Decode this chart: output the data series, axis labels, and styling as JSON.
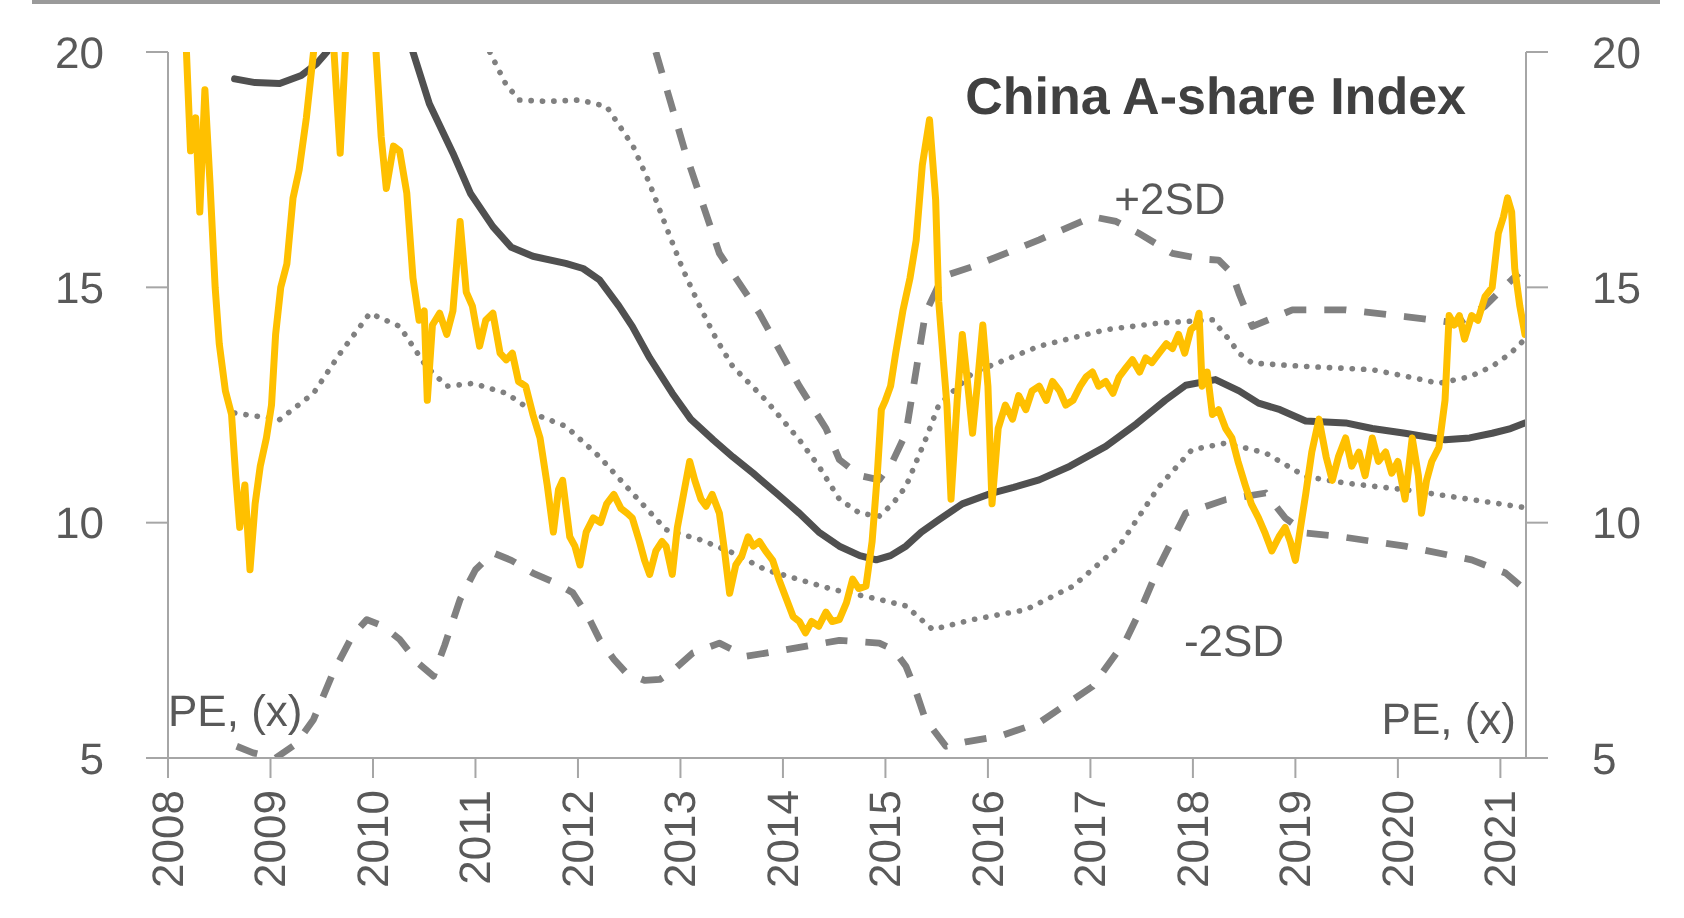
{
  "chart_data": {
    "type": "line",
    "title": "China A-share Index",
    "ylabel": "PE, (x)",
    "y2label": "PE, (x)",
    "annotations": [
      "+2SD",
      "-2SD"
    ],
    "xlim": [
      2008,
      2021.25
    ],
    "xticks": [
      2008,
      2009,
      2010,
      2011,
      2012,
      2013,
      2014,
      2015,
      2016,
      2017,
      2018,
      2019,
      2020,
      2021
    ],
    "ylim": [
      5,
      20
    ],
    "yticks": [
      5,
      10,
      15,
      20
    ],
    "y2lim": [
      5,
      20
    ],
    "y2ticks": [
      5,
      10,
      15,
      20
    ],
    "series": [
      {
        "color": "#ffc000",
        "line_style": "solid",
        "x": [
          2008.18,
          2008.22,
          2008.27,
          2008.31,
          2008.36,
          2008.41,
          2008.46,
          2008.5,
          2008.56,
          2008.62,
          2008.66,
          2008.7,
          2008.75,
          2008.8,
          2008.85,
          2008.9,
          2008.96,
          2009.01,
          2009.05,
          2009.1,
          2009.16,
          2009.22,
          2009.28,
          2009.35,
          2009.42,
          2009.52,
          2009.62,
          2009.68,
          2009.73,
          2009.88,
          2010.03,
          2010.08,
          2010.13,
          2010.2,
          2010.26,
          2010.33,
          2010.39,
          2010.45,
          2010.5,
          2010.53,
          2010.58,
          2010.65,
          2010.72,
          2010.78,
          2010.85,
          2010.91,
          2010.97,
          2011.04,
          2011.1,
          2011.17,
          2011.24,
          2011.3,
          2011.36,
          2011.42,
          2011.49,
          2011.56,
          2011.63,
          2011.7,
          2011.76,
          2011.81,
          2011.85,
          2011.92,
          2011.97,
          2012.02,
          2012.08,
          2012.15,
          2012.22,
          2012.28,
          2012.35,
          2012.42,
          2012.48,
          2012.53,
          2012.6,
          2012.65,
          2012.7,
          2012.76,
          2012.82,
          2012.86,
          2012.92,
          2012.97,
          2013.03,
          2013.09,
          2013.14,
          2013.2,
          2013.25,
          2013.31,
          2013.38,
          2013.43,
          2013.48,
          2013.54,
          2013.6,
          2013.66,
          2013.71,
          2013.77,
          2013.83,
          2013.9,
          2013.96,
          2014.03,
          2014.1,
          2014.16,
          2014.22,
          2014.28,
          2014.35,
          2014.42,
          2014.48,
          2014.55,
          2014.62,
          2014.68,
          2014.74,
          2014.81,
          2014.87,
          2014.92,
          2014.96,
          2015.0,
          2015.05,
          2015.1,
          2015.17,
          2015.24,
          2015.3,
          2015.36,
          2015.43,
          2015.49,
          2015.52,
          2015.57,
          2015.6,
          2015.64,
          2015.7,
          2015.75,
          2015.8,
          2015.85,
          2015.9,
          2015.95,
          2016.0,
          2016.04,
          2016.1,
          2016.17,
          2016.24,
          2016.3,
          2016.37,
          2016.43,
          2016.5,
          2016.57,
          2016.63,
          2016.7,
          2016.76,
          2016.83,
          2016.9,
          2016.96,
          2017.02,
          2017.08,
          2017.15,
          2017.22,
          2017.28,
          2017.35,
          2017.41,
          2017.48,
          2017.54,
          2017.6,
          2017.67,
          2017.74,
          2017.8,
          2017.86,
          2017.92,
          2017.98,
          2018.03,
          2018.06,
          2018.09,
          2018.14,
          2018.19,
          2018.25,
          2018.32,
          2018.38,
          2018.44,
          2018.51,
          2018.57,
          2018.64,
          2018.7,
          2018.77,
          2018.84,
          2018.9,
          2018.95,
          2019.0,
          2019.05,
          2019.1,
          2019.16,
          2019.23,
          2019.3,
          2019.36,
          2019.42,
          2019.49,
          2019.55,
          2019.62,
          2019.68,
          2019.75,
          2019.81,
          2019.88,
          2019.94,
          2020.0,
          2020.07,
          2020.14,
          2020.2,
          2020.23,
          2020.28,
          2020.33,
          2020.4,
          2020.46,
          2020.5,
          2020.55,
          2020.6,
          2020.65,
          2020.72,
          2020.78,
          2020.85,
          2020.92,
          2020.98,
          2021.03,
          2021.07,
          2021.11,
          2021.14,
          2021.19,
          2021.24
        ],
        "values": [
          20,
          17.9,
          18.6,
          16.6,
          19.2,
          17.2,
          15.0,
          13.8,
          12.8,
          12.3,
          11.0,
          9.9,
          10.8,
          9.0,
          10.4,
          11.2,
          11.8,
          12.5,
          14.0,
          15.0,
          15.5,
          16.9,
          17.5,
          18.6,
          20,
          null,
          20,
          17.85,
          20,
          null,
          20,
          18.2,
          17.1,
          18.0,
          17.9,
          17.0,
          15.2,
          14.3,
          14.5,
          12.6,
          14.2,
          14.45,
          14.0,
          14.5,
          16.4,
          14.9,
          14.6,
          13.75,
          14.3,
          14.45,
          13.6,
          13.46,
          13.6,
          13.0,
          12.9,
          12.3,
          11.8,
          10.8,
          9.8,
          10.7,
          10.9,
          9.7,
          9.5,
          9.1,
          9.8,
          10.1,
          10.0,
          10.4,
          10.6,
          10.3,
          10.2,
          10.1,
          9.6,
          9.2,
          8.9,
          9.4,
          9.6,
          9.5,
          8.9,
          9.9,
          10.6,
          11.3,
          10.9,
          10.5,
          10.35,
          10.6,
          10.2,
          9.4,
          8.5,
          9.1,
          9.3,
          9.7,
          9.5,
          9.6,
          9.4,
          9.2,
          8.8,
          8.4,
          8.0,
          7.9,
          7.66,
          7.9,
          7.8,
          8.1,
          7.9,
          7.94,
          8.3,
          8.8,
          8.6,
          8.65,
          9.6,
          11.0,
          12.4,
          12.6,
          12.9,
          13.6,
          14.5,
          15.2,
          16.0,
          17.6,
          18.56,
          16.86,
          14.7,
          13.3,
          12.5,
          10.5,
          12.6,
          14.0,
          13.0,
          11.9,
          13.0,
          14.2,
          12.9,
          10.4,
          12.0,
          12.5,
          12.2,
          12.7,
          12.4,
          12.8,
          12.9,
          12.6,
          13.0,
          12.8,
          12.5,
          12.6,
          12.9,
          13.1,
          13.2,
          12.9,
          13.0,
          12.75,
          13.1,
          13.3,
          13.46,
          13.2,
          13.5,
          13.4,
          13.6,
          13.8,
          13.7,
          14.0,
          13.6,
          14.1,
          14.2,
          14.45,
          12.9,
          13.2,
          12.3,
          12.4,
          12.0,
          11.8,
          11.3,
          10.8,
          10.4,
          10.1,
          9.8,
          9.4,
          9.7,
          9.9,
          9.6,
          9.2,
          9.9,
          10.6,
          11.5,
          12.2,
          11.4,
          10.9,
          11.4,
          11.8,
          11.2,
          11.5,
          11.0,
          11.8,
          11.3,
          11.5,
          11.05,
          11.3,
          10.5,
          11.8,
          11.0,
          10.2,
          10.9,
          11.3,
          11.6,
          12.6,
          14.4,
          14.2,
          14.4,
          13.9,
          14.4,
          14.3,
          14.8,
          15.0,
          16.15,
          16.5,
          16.9,
          16.6,
          15.4,
          14.6,
          14.0
        ]
      },
      {
        "color": "#505050",
        "line_style": "solid",
        "x": [
          2008.65,
          2008.85,
          2009.09,
          2009.3,
          2009.45,
          2009.55,
          2009.9,
          2010.39,
          2010.55,
          2010.78,
          2010.95,
          2011.17,
          2011.35,
          2011.56,
          2011.88,
          2012.05,
          2012.21,
          2012.4,
          2012.53,
          2012.7,
          2012.92,
          2013.1,
          2013.32,
          2013.51,
          2013.71,
          2013.95,
          2014.16,
          2014.35,
          2014.55,
          2014.75,
          2014.91,
          2015.05,
          2015.2,
          2015.35,
          2015.52,
          2015.75,
          2016.04,
          2016.25,
          2016.5,
          2016.8,
          2017.15,
          2017.45,
          2017.73,
          2017.93,
          2018.22,
          2018.45,
          2018.64,
          2018.85,
          2019.1,
          2019.49,
          2019.75,
          2020.07,
          2020.46,
          2020.7,
          2020.92,
          2021.1,
          2021.24
        ],
        "values": [
          19.43,
          19.35,
          19.33,
          19.5,
          19.75,
          20,
          null,
          20,
          18.9,
          17.85,
          17.0,
          16.29,
          15.85,
          15.66,
          15.51,
          15.4,
          15.16,
          14.6,
          14.17,
          13.5,
          12.75,
          12.2,
          11.76,
          11.4,
          11.05,
          10.6,
          10.2,
          9.8,
          9.5,
          9.3,
          9.21,
          9.3,
          9.5,
          9.8,
          10.06,
          10.4,
          10.63,
          10.75,
          10.91,
          11.2,
          11.62,
          12.1,
          12.6,
          12.92,
          13.04,
          12.8,
          12.54,
          12.4,
          12.16,
          12.12,
          12.0,
          11.9,
          11.76,
          11.8,
          11.9,
          12.0,
          12.12
        ]
      },
      {
        "color": "#808080",
        "line_style": "dotted",
        "x": [
          2011.14,
          2011.3,
          2011.43,
          2011.7,
          2012.02,
          2012.28,
          2012.54,
          2012.7,
          2012.86,
          2013.02,
          2013.19,
          2013.35,
          2013.51,
          2013.83,
          2014.16,
          2014.35,
          2014.55,
          2014.75,
          2014.94,
          2015.07,
          2015.2,
          2015.39,
          2015.52,
          2015.85,
          2016.5,
          2017.15,
          2017.67,
          2018.19,
          2018.35,
          2018.45,
          2018.58,
          2019.1,
          2019.75,
          2020.1,
          2020.4,
          2020.7,
          2020.92,
          2021.1,
          2021.24
        ],
        "values": [
          20,
          19.3,
          18.98,
          18.95,
          18.98,
          18.84,
          17.99,
          17.2,
          16.29,
          15.4,
          14.59,
          13.9,
          13.32,
          12.61,
          11.76,
          11.2,
          10.5,
          10.2,
          10.14,
          10.4,
          10.77,
          11.76,
          12.5,
          13.18,
          13.75,
          14.1,
          14.24,
          14.31,
          13.9,
          13.6,
          13.39,
          13.32,
          13.25,
          13.1,
          12.96,
          13.1,
          13.32,
          13.6,
          13.9
        ]
      },
      {
        "color": "#808080",
        "line_style": "dotted",
        "x": [
          2008.65,
          2009.09,
          2009.42,
          2009.68,
          2009.97,
          2010.26,
          2010.52,
          2010.72,
          2010.98,
          2011.3,
          2011.63,
          2011.88,
          2012.21,
          2012.53,
          2012.86,
          2013.19,
          2013.51,
          2013.83,
          2014.16,
          2014.49,
          2014.94,
          2015.2,
          2015.46,
          2015.85,
          2016.37,
          2016.83,
          2017.28,
          2017.67,
          2017.99,
          2018.32,
          2018.71,
          2019.1,
          2019.49,
          2020.07,
          2020.72,
          2021.24
        ],
        "values": [
          12.33,
          12.19,
          12.75,
          13.6,
          14.45,
          14.17,
          13.32,
          12.9,
          12.96,
          12.75,
          12.26,
          12.05,
          11.4,
          10.63,
          9.85,
          9.64,
          9.36,
          9.0,
          8.79,
          8.58,
          8.37,
          8.23,
          7.73,
          7.94,
          8.15,
          8.65,
          9.5,
          10.77,
          11.55,
          11.69,
          11.48,
          10.98,
          10.84,
          10.7,
          10.49,
          10.32
        ]
      },
      {
        "color": "#808080",
        "line_style": "dashed",
        "x": [
          2012.76,
          2013.05,
          2013.38,
          2013.77,
          2014.16,
          2014.42,
          2014.55,
          2014.75,
          2014.94,
          2015.07,
          2015.2,
          2015.39,
          2015.56,
          2015.85,
          2016.5,
          2017.02,
          2017.25,
          2017.47,
          2017.8,
          2018.1,
          2018.25,
          2018.38,
          2018.45,
          2018.58,
          2018.97,
          2019.49,
          2020.07,
          2020.59,
          2020.85,
          2021.11,
          2021.18
        ],
        "values": [
          20,
          17.85,
          15.72,
          14.45,
          12.9,
          12.0,
          11.34,
          11.0,
          10.91,
          11.3,
          11.9,
          14.45,
          15.23,
          15.44,
          16.01,
          16.5,
          16.4,
          16.15,
          15.72,
          15.6,
          15.58,
          15.3,
          14.87,
          14.17,
          14.52,
          14.52,
          14.38,
          14.24,
          14.6,
          15.16,
          15.3
        ]
      },
      {
        "color": "#808080",
        "line_style": "dashed",
        "x": [
          2008.67,
          2008.83,
          2009.05,
          2009.25,
          2009.42,
          2009.61,
          2009.8,
          2009.94,
          2010.1,
          2010.26,
          2010.45,
          2010.59,
          2010.7,
          2010.85,
          2011.0,
          2011.17,
          2011.35,
          2011.56,
          2011.8,
          2011.95,
          2012.1,
          2012.21,
          2012.35,
          2012.47,
          2012.65,
          2012.8,
          2012.95,
          2013.12,
          2013.38,
          2013.64,
          2014.03,
          2014.55,
          2014.94,
          2015.08,
          2015.2,
          2015.3,
          2015.39,
          2015.59,
          2015.8,
          2016.11,
          2016.5,
          2017.02,
          2017.35,
          2017.5,
          2017.67,
          2017.93,
          2018.32,
          2018.71,
          2018.9,
          2019.1,
          2019.42,
          2020.07,
          2020.72,
          2021.05,
          2021.24
        ],
        "values": [
          5.25,
          5.11,
          5.0,
          5.3,
          5.82,
          6.81,
          7.6,
          7.94,
          7.8,
          7.52,
          7.0,
          6.74,
          7.4,
          8.37,
          9.0,
          9.36,
          9.2,
          8.93,
          8.7,
          8.51,
          8.0,
          7.52,
          7.1,
          6.81,
          6.65,
          6.67,
          6.9,
          7.23,
          7.44,
          7.16,
          7.3,
          7.5,
          7.44,
          7.3,
          6.95,
          6.4,
          5.82,
          5.25,
          5.35,
          5.46,
          5.75,
          6.52,
          7.52,
          8.2,
          9.07,
          10.2,
          10.49,
          10.63,
          10.1,
          9.78,
          9.71,
          9.5,
          9.21,
          8.93,
          8.58
        ]
      }
    ]
  }
}
